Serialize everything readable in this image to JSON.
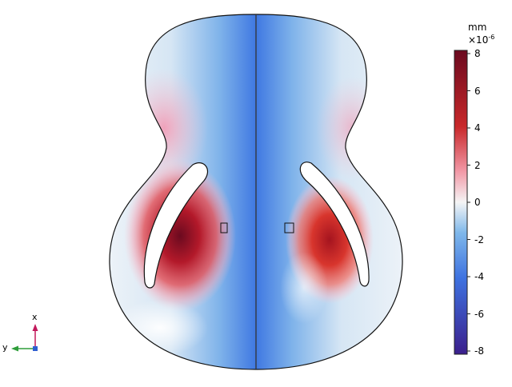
{
  "plot": {
    "title": "",
    "colorbar": {
      "unit": "mm",
      "multiplier_base": "×10",
      "multiplier_exponent": "-6",
      "ticks": [
        "8",
        "6",
        "4",
        "2",
        "0",
        "-2",
        "-4",
        "-6",
        "-8"
      ],
      "range": [
        -8,
        8
      ],
      "colors": {
        "max": "#6b0a1f",
        "high": "#c8282a",
        "mid_high": "#f29aa8",
        "zero": "#f5f5f5",
        "mid_low": "#7fb8ea",
        "low": "#3e72e0",
        "min": "#3b1f8c"
      }
    },
    "triad": {
      "x_label": "x",
      "y_label": "y"
    }
  }
}
